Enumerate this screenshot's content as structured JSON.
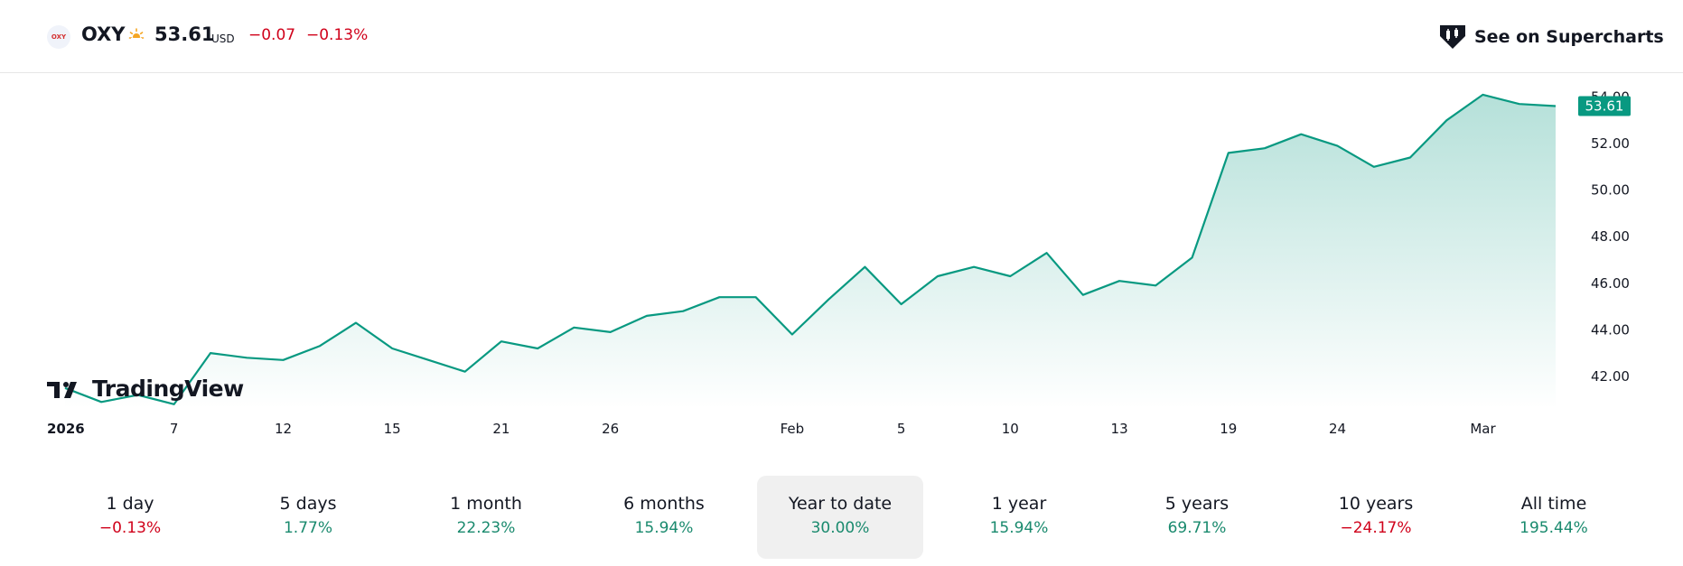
{
  "header": {
    "symbol": "OXY",
    "logo_text": "OXY",
    "session_icon": "sun-icon",
    "price": "53.61",
    "currency": "USD",
    "change": "−0.07",
    "change_percent": "−0.13%",
    "supercharts_label": "See on Supercharts",
    "supercharts_icon": "tradingview-shield-icon"
  },
  "colors": {
    "line": "#089981",
    "positive": "#1a8a6e",
    "negative": "#d0021b",
    "price_badge": "#089981"
  },
  "brand": {
    "tv_label": "TradingView"
  },
  "chart_data": {
    "type": "area",
    "x": [
      "2026-01-02",
      "2026-01-05",
      "2026-01-06",
      "2026-01-07",
      "2026-01-08",
      "2026-01-09",
      "2026-01-12",
      "2026-01-13",
      "2026-01-14",
      "2026-01-15",
      "2026-01-16",
      "2026-01-20",
      "2026-01-21",
      "2026-01-22",
      "2026-01-23",
      "2026-01-26",
      "2026-01-27",
      "2026-01-28",
      "2026-01-29",
      "2026-01-30",
      "2026-02-02",
      "2026-02-03",
      "2026-02-04",
      "2026-02-05",
      "2026-02-06",
      "2026-02-09",
      "2026-02-10",
      "2026-02-11",
      "2026-02-12",
      "2026-02-13",
      "2026-02-17",
      "2026-02-18",
      "2026-02-19",
      "2026-02-20",
      "2026-02-23",
      "2026-02-24",
      "2026-02-25",
      "2026-02-26",
      "2026-02-27",
      "2026-03-02",
      "2026-03-03",
      "2026-03-04"
    ],
    "series": [
      {
        "values": [
          41.5,
          40.9,
          41.2,
          40.8,
          43.0,
          42.8,
          42.7,
          43.3,
          44.3,
          43.2,
          42.7,
          42.2,
          43.5,
          43.2,
          44.1,
          43.9,
          44.6,
          44.8,
          45.4,
          45.4,
          43.8,
          45.3,
          46.7,
          45.1,
          46.3,
          46.7,
          46.3,
          47.3,
          45.5,
          46.1,
          45.9,
          47.1,
          51.6,
          51.8,
          52.4,
          51.9,
          51.0,
          51.4,
          53.0,
          54.1,
          53.7,
          53.61
        ]
      }
    ],
    "last_value": "53.61",
    "y_ticks": [
      "54.00",
      "52.00",
      "50.00",
      "48.00",
      "46.00",
      "44.00",
      "42.00"
    ],
    "ylim": [
      40.6,
      54.6
    ],
    "x_ticks": [
      {
        "label": "2026",
        "x": "2026-01-02",
        "bold": true
      },
      {
        "label": "7",
        "x": "2026-01-07"
      },
      {
        "label": "12",
        "x": "2026-01-12"
      },
      {
        "label": "15",
        "x": "2026-01-15"
      },
      {
        "label": "21",
        "x": "2026-01-21"
      },
      {
        "label": "26",
        "x": "2026-01-26"
      },
      {
        "label": "Feb",
        "x": "2026-02-02"
      },
      {
        "label": "5",
        "x": "2026-02-05"
      },
      {
        "label": "10",
        "x": "2026-02-10"
      },
      {
        "label": "13",
        "x": "2026-02-13"
      },
      {
        "label": "19",
        "x": "2026-02-19"
      },
      {
        "label": "24",
        "x": "2026-02-24"
      },
      {
        "label": "Mar",
        "x": "2026-03-02"
      }
    ],
    "grid": false
  },
  "periods": [
    {
      "label": "1 day",
      "value": "−0.13%",
      "sign": "neg",
      "active": false
    },
    {
      "label": "5 days",
      "value": "1.77%",
      "sign": "pos",
      "active": false
    },
    {
      "label": "1 month",
      "value": "22.23%",
      "sign": "pos",
      "active": false
    },
    {
      "label": "6 months",
      "value": "15.94%",
      "sign": "pos",
      "active": false
    },
    {
      "label": "Year to date",
      "value": "30.00%",
      "sign": "pos",
      "active": true
    },
    {
      "label": "1 year",
      "value": "15.94%",
      "sign": "pos",
      "active": false
    },
    {
      "label": "5 years",
      "value": "69.71%",
      "sign": "pos",
      "active": false
    },
    {
      "label": "10 years",
      "value": "−24.17%",
      "sign": "neg",
      "active": false
    },
    {
      "label": "All time",
      "value": "195.44%",
      "sign": "pos",
      "active": false
    }
  ]
}
